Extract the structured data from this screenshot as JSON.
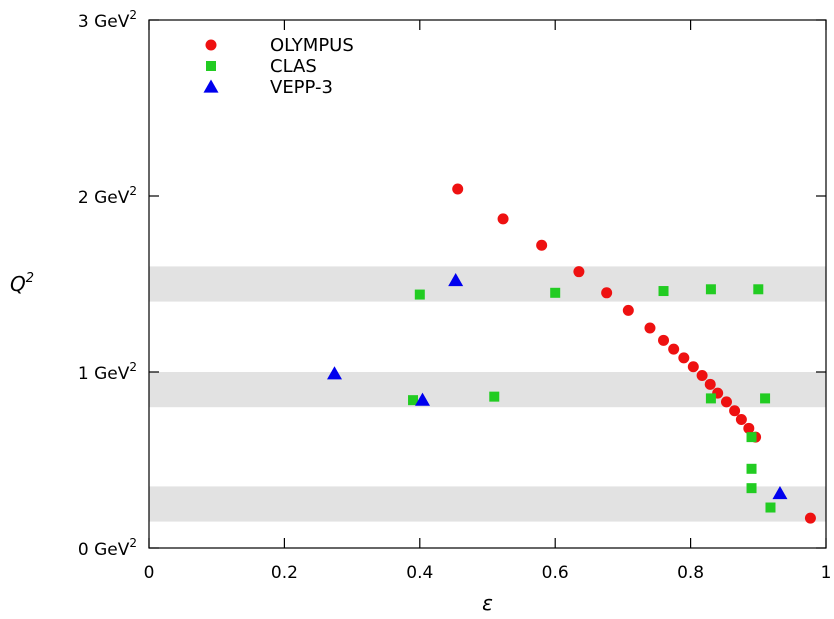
{
  "chart_data": {
    "type": "scatter",
    "xlabel": "ε",
    "ylabel": "Q",
    "ylabel_sup": "2",
    "xlim": [
      0,
      1
    ],
    "ylim": [
      0,
      3
    ],
    "grid": false,
    "legend_position": "top-left",
    "x_ticks": [
      {
        "value": 0,
        "label": "0"
      },
      {
        "value": 0.2,
        "label": "0.2"
      },
      {
        "value": 0.4,
        "label": "0.4"
      },
      {
        "value": 0.6,
        "label": "0.6"
      },
      {
        "value": 0.8,
        "label": "0.8"
      },
      {
        "value": 1,
        "label": "1"
      }
    ],
    "y_ticks": [
      {
        "value": 0,
        "label": "0 GeV",
        "sup": "2"
      },
      {
        "value": 1,
        "label": "1 GeV",
        "sup": "2"
      },
      {
        "value": 2,
        "label": "2 GeV",
        "sup": "2"
      },
      {
        "value": 3,
        "label": "3 GeV",
        "sup": "2"
      }
    ],
    "bands": [
      {
        "y_low": 1.4,
        "y_high": 1.6
      },
      {
        "y_low": 0.8,
        "y_high": 1.0
      },
      {
        "y_low": 0.15,
        "y_high": 0.35
      }
    ],
    "series": [
      {
        "name": "OLYMPUS",
        "marker": "circle",
        "color": "#ee1111",
        "points": [
          [
            0.456,
            2.04
          ],
          [
            0.523,
            1.87
          ],
          [
            0.58,
            1.72
          ],
          [
            0.635,
            1.57
          ],
          [
            0.676,
            1.45
          ],
          [
            0.708,
            1.35
          ],
          [
            0.74,
            1.25
          ],
          [
            0.76,
            1.18
          ],
          [
            0.775,
            1.13
          ],
          [
            0.79,
            1.08
          ],
          [
            0.804,
            1.03
          ],
          [
            0.817,
            0.98
          ],
          [
            0.829,
            0.93
          ],
          [
            0.84,
            0.88
          ],
          [
            0.853,
            0.83
          ],
          [
            0.865,
            0.78
          ],
          [
            0.875,
            0.73
          ],
          [
            0.886,
            0.68
          ],
          [
            0.896,
            0.63
          ],
          [
            0.977,
            0.17
          ]
        ]
      },
      {
        "name": "CLAS",
        "marker": "square",
        "color": "#22cc22",
        "points": [
          [
            0.39,
            0.84
          ],
          [
            0.4,
            1.44
          ],
          [
            0.51,
            0.86
          ],
          [
            0.6,
            1.45
          ],
          [
            0.76,
            1.46
          ],
          [
            0.83,
            0.85
          ],
          [
            0.83,
            1.47
          ],
          [
            0.89,
            0.63
          ],
          [
            0.89,
            0.45
          ],
          [
            0.89,
            0.34
          ],
          [
            0.9,
            1.47
          ],
          [
            0.91,
            0.85
          ],
          [
            0.918,
            0.23
          ]
        ]
      },
      {
        "name": "VEPP-3",
        "marker": "triangle",
        "color": "#0000ee",
        "points": [
          [
            0.274,
            0.99
          ],
          [
            0.404,
            0.84
          ],
          [
            0.453,
            1.52
          ],
          [
            0.932,
            0.31
          ]
        ]
      }
    ]
  }
}
